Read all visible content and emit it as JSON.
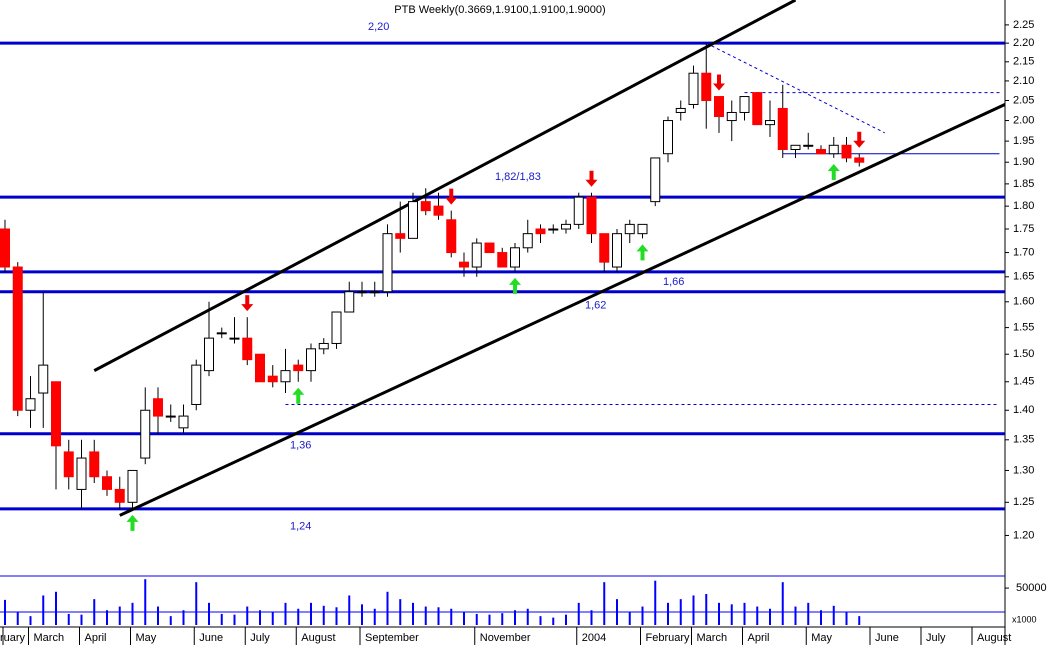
{
  "chart_data": [
    {
      "type": "candlestick",
      "title": "PTB Weekly(0.3669,1.9100,1.9100,1.9000)",
      "categories": [
        "ruary",
        null,
        "March",
        null,
        null,
        null,
        "April",
        null,
        null,
        null,
        "May",
        null,
        null,
        null,
        null,
        "June",
        null,
        null,
        null,
        "July",
        null,
        null,
        null,
        "August",
        null,
        null,
        null,
        null,
        "September",
        null,
        null,
        null,
        null,
        null,
        null,
        null,
        null,
        "November",
        null,
        null,
        null,
        null,
        null,
        null,
        null,
        "2004",
        null,
        null,
        null,
        null,
        "February",
        null,
        null,
        null,
        "March",
        null,
        null,
        null,
        "April",
        null,
        null,
        null,
        null,
        "May",
        null,
        null,
        null,
        null,
        "June",
        null,
        null,
        null,
        "July",
        null,
        null,
        null,
        "August",
        null,
        null
      ],
      "open": [
        1.75,
        1.67,
        1.4,
        1.43,
        1.45,
        1.33,
        1.27,
        1.33,
        1.29,
        1.27,
        1.25,
        1.32,
        1.42,
        1.39,
        1.37,
        1.41,
        1.47,
        1.54,
        1.53,
        1.53,
        1.5,
        1.46,
        1.45,
        1.48,
        1.47,
        1.51,
        1.52,
        1.58,
        1.62,
        1.62,
        1.62,
        1.74,
        1.73,
        1.81,
        1.8,
        1.77,
        1.68,
        1.67,
        1.72,
        1.7,
        1.67,
        1.71,
        1.75,
        1.75,
        1.75,
        1.76,
        1.82,
        1.74,
        1.67,
        1.74,
        1.74,
        1.81,
        1.92,
        2.02,
        2.04,
        2.12,
        2.06,
        2.0,
        2.02,
        2.07,
        1.99,
        2.03,
        1.93,
        1.94,
        1.93,
        1.92,
        1.94,
        1.91,
        null,
        null,
        null,
        null,
        null,
        null,
        null,
        null,
        null,
        null,
        null
      ],
      "high": [
        1.77,
        1.68,
        1.46,
        1.62,
        1.45,
        1.35,
        1.35,
        1.35,
        1.3,
        1.29,
        1.3,
        1.44,
        1.44,
        1.41,
        1.41,
        1.49,
        1.6,
        1.55,
        1.57,
        1.57,
        1.5,
        1.48,
        1.51,
        1.49,
        1.52,
        1.53,
        1.58,
        1.64,
        1.64,
        1.64,
        1.76,
        1.81,
        1.83,
        1.84,
        1.83,
        1.79,
        1.7,
        1.73,
        1.72,
        1.71,
        1.72,
        1.77,
        1.76,
        1.76,
        1.77,
        1.83,
        1.83,
        1.74,
        1.75,
        1.77,
        1.76,
        1.91,
        2.01,
        2.05,
        2.14,
        2.2,
        2.06,
        2.05,
        2.06,
        2.07,
        2.05,
        2.09,
        1.94,
        1.97,
        1.94,
        1.96,
        1.96,
        1.92,
        null,
        null,
        null,
        null,
        null,
        null,
        null,
        null,
        null,
        null,
        null
      ],
      "low": [
        1.66,
        1.39,
        1.37,
        1.37,
        1.27,
        1.27,
        1.24,
        1.28,
        1.26,
        1.24,
        1.24,
        1.31,
        1.36,
        1.38,
        1.36,
        1.4,
        1.46,
        1.53,
        1.52,
        1.48,
        1.45,
        1.44,
        1.43,
        1.45,
        1.45,
        1.5,
        1.51,
        1.58,
        1.61,
        1.61,
        1.61,
        1.7,
        1.73,
        1.78,
        1.77,
        1.69,
        1.65,
        1.65,
        1.7,
        1.67,
        1.66,
        1.7,
        1.72,
        1.74,
        1.74,
        1.75,
        1.72,
        1.66,
        1.66,
        1.72,
        1.73,
        1.8,
        1.9,
        2.0,
        2.03,
        1.98,
        1.97,
        1.95,
        2.0,
        1.99,
        1.96,
        1.91,
        1.91,
        1.93,
        1.92,
        1.91,
        1.9,
        1.89,
        null,
        null,
        null,
        null,
        null,
        null,
        null,
        null,
        null,
        null,
        null
      ],
      "close": [
        1.67,
        1.4,
        1.42,
        1.48,
        1.34,
        1.29,
        1.32,
        1.29,
        1.27,
        1.25,
        1.3,
        1.4,
        1.39,
        1.39,
        1.39,
        1.48,
        1.53,
        1.54,
        1.53,
        1.49,
        1.45,
        1.45,
        1.47,
        1.47,
        1.51,
        1.52,
        1.58,
        1.62,
        1.62,
        1.62,
        1.74,
        1.73,
        1.81,
        1.79,
        1.78,
        1.7,
        1.67,
        1.72,
        1.7,
        1.67,
        1.71,
        1.74,
        1.74,
        1.75,
        1.76,
        1.82,
        1.74,
        1.68,
        1.74,
        1.76,
        1.76,
        1.91,
        2.0,
        2.03,
        2.12,
        2.05,
        2.01,
        2.02,
        2.06,
        1.99,
        2.0,
        1.93,
        1.94,
        1.94,
        1.92,
        1.94,
        1.91,
        1.9,
        null,
        null,
        null,
        null,
        null,
        null,
        null,
        null,
        null,
        null,
        null
      ],
      "up_color": "#ffffff",
      "down_color": "#ff0000",
      "log_y": true,
      "ylim": [
        1.16,
        2.32
      ],
      "yticks": [
        2.25,
        {
          "value": 2.2,
          "label": "2.20"
        },
        2.15,
        {
          "value": 2.1,
          "label": "2.10"
        },
        2.05,
        {
          "value": 2,
          "label": "2.00"
        },
        1.95,
        {
          "value": 1.9,
          "label": "1.90"
        },
        1.85,
        {
          "value": 1.8,
          "label": "1.80"
        },
        1.75,
        {
          "value": 1.7,
          "label": "1.70"
        },
        1.65,
        {
          "value": 1.6,
          "label": "1.60"
        },
        1.55,
        {
          "value": 1.5,
          "label": "1.50"
        },
        1.45,
        {
          "value": 1.4,
          "label": "1.40"
        },
        1.35,
        {
          "value": 1.3,
          "label": "1.30"
        },
        1.25,
        {
          "value": 1.2,
          "label": "1.20"
        }
      ],
      "hlines": [
        {
          "value": 2.2,
          "label": "2,20"
        },
        {
          "value": 1.82,
          "label": "1,82/1,83"
        },
        {
          "value": 1.66,
          "label": "1,66"
        },
        {
          "value": 1.62,
          "label": "1,62"
        },
        {
          "value": 1.36,
          "label": "1,36"
        },
        {
          "value": 1.24,
          "label": "1,24"
        }
      ],
      "hline_color": "#0000cc",
      "trendlines": [
        {
          "from": [
            7,
            1.47
          ],
          "to": [
            62,
            2.32
          ]
        },
        {
          "from": [
            9,
            1.23
          ],
          "to": [
            82.4,
            2.1
          ]
        }
      ],
      "trend_color": "#000000",
      "dashed_lines": [
        {
          "from": [
            55,
            2.2
          ],
          "to": [
            69,
            1.97
          ]
        },
        {
          "from": [
            58,
            2.07
          ],
          "to": [
            78,
            2.07
          ]
        },
        {
          "from": [
            22,
            1.41
          ],
          "to": [
            78,
            1.41
          ]
        }
      ],
      "thin_lines": [
        {
          "from": [
            61,
            1.92
          ],
          "to": [
            78,
            1.92
          ]
        }
      ],
      "signals": {
        "sell": [
          19,
          35,
          46,
          56,
          67
        ],
        "buy": [
          10,
          23,
          40,
          50,
          65
        ]
      },
      "sell_color": "#ee0000",
      "buy_color": "#22dd22"
    },
    {
      "type": "bar",
      "values": [
        34000,
        18000,
        12000,
        40000,
        45000,
        15000,
        14000,
        35000,
        20000,
        25000,
        30000,
        62000,
        25000,
        12000,
        20000,
        58000,
        30000,
        15000,
        14000,
        25000,
        20000,
        18000,
        30000,
        22000,
        30000,
        26000,
        24000,
        40000,
        28000,
        22000,
        45000,
        35000,
        30000,
        25000,
        24000,
        22000,
        18000,
        15000,
        14000,
        16000,
        20000,
        22000,
        12000,
        10000,
        14000,
        30000,
        20000,
        58000,
        35000,
        18000,
        25000,
        60000,
        30000,
        35000,
        40000,
        42000,
        30000,
        28000,
        30000,
        25000,
        22000,
        58000,
        25000,
        30000,
        20000,
        26000,
        18000,
        12000,
        null,
        null,
        null,
        null,
        null,
        null,
        null,
        null,
        null,
        null,
        null
      ],
      "color": "#0000ff",
      "ylim": [
        0,
        65000
      ],
      "yticks": [
        50000
      ],
      "ylabel": "x1000"
    }
  ]
}
